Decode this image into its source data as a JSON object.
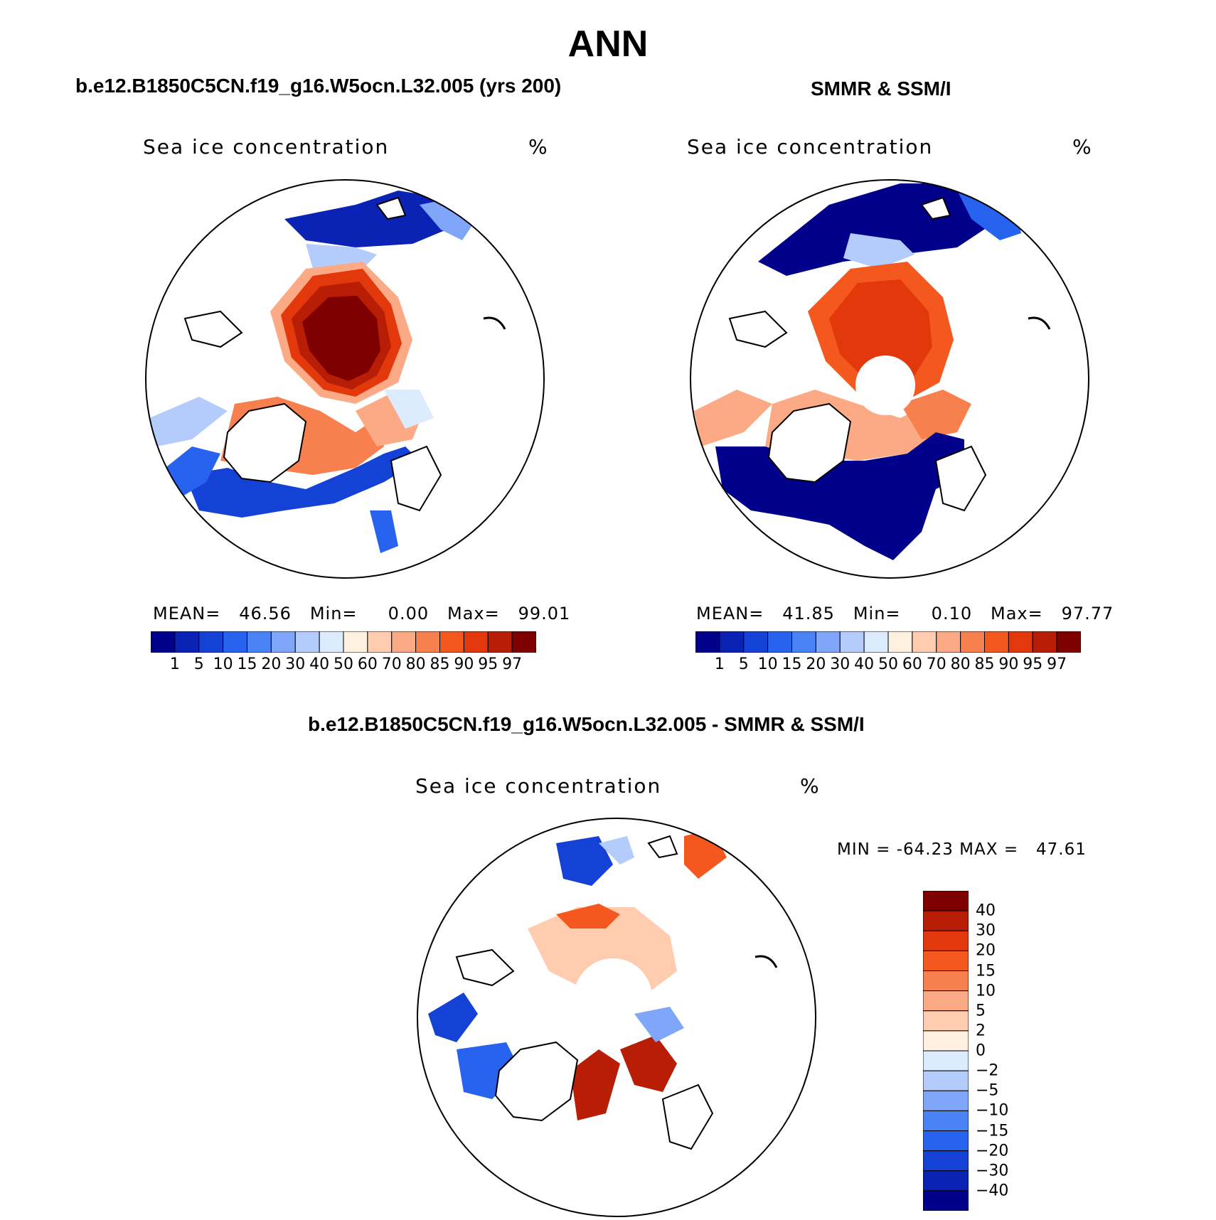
{
  "title": "ANN",
  "panels": [
    {
      "id": "model",
      "title": "b.e12.B1850C5CN.f19_g16.W5ocn.L32.005 (yrs 200)",
      "field": "Sea ice concentration",
      "units": "%",
      "stats": "MEAN=   46.56   Min=     0.00   Max=   99.01",
      "mean": 46.56,
      "min": 0.0,
      "max": 99.01
    },
    {
      "id": "obs",
      "title": "SMMR & SSM/I",
      "field": "Sea ice concentration",
      "units": "%",
      "stats": "MEAN=   41.85   Min=     0.10   Max=   97.77",
      "mean": 41.85,
      "min": 0.1,
      "max": 97.77
    },
    {
      "id": "diff",
      "title": "b.e12.B1850C5CN.f19_g16.W5ocn.L32.005 - SMMR & SSM/I",
      "field": "Sea ice concentration",
      "units": "%",
      "stats": "MIN = -64.23 MAX =   47.61",
      "min": -64.23,
      "max": 47.61
    }
  ],
  "colorbar_abs": {
    "colors": [
      "#00008b",
      "#0a23b4",
      "#1441d6",
      "#2763ef",
      "#4a83f5",
      "#7fa6f8",
      "#b3ccfb",
      "#dcebfe",
      "#fff0e0",
      "#ffccb0",
      "#fcaa85",
      "#f8804f",
      "#f5581f",
      "#e2380b",
      "#b81e05",
      "#7f0000"
    ],
    "labels": [
      "1",
      "5",
      "10",
      "15",
      "20",
      "30",
      "40",
      "50",
      "60",
      "70",
      "80",
      "85",
      "90",
      "95",
      "97"
    ]
  },
  "colorbar_diff": {
    "colors_top_to_bottom": [
      "#7f0000",
      "#b81e05",
      "#e2380b",
      "#f5581f",
      "#f8804f",
      "#fcaa85",
      "#ffccb0",
      "#fff0e0",
      "#dcebfe",
      "#b3ccfb",
      "#7fa6f8",
      "#4a83f5",
      "#2763ef",
      "#1441d6",
      "#0a23b4",
      "#00008b"
    ],
    "labels_top_to_bottom": [
      "40",
      "30",
      "20",
      "15",
      "10",
      "5",
      "2",
      "0",
      "-2",
      "-5",
      "-10",
      "-15",
      "-20",
      "-30",
      "-40"
    ]
  }
}
